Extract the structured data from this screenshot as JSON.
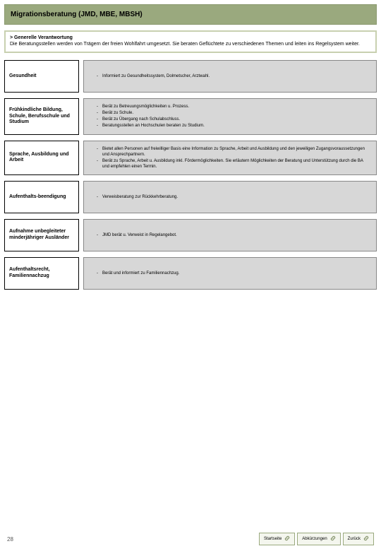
{
  "colors": {
    "header_bg": "#9aa97e",
    "intro_border": "#c8d0b0",
    "row_rhs_bg": "#d7d7d7",
    "btn_border": "#9aa97e",
    "btn_bg": "#f4f6ee"
  },
  "header": {
    "title": "Migrationsberatung (JMD, MBE, MBSH)"
  },
  "intro": {
    "chevron": ">",
    "title": "Generelle Verantwortung",
    "body": "Die Beratungsstellen werden von Trägern der freien Wohlfahrt umgesetzt. Sie beraten Geflüchtete zu verschiedenen Themen und leiten ins Regelsystem weiter."
  },
  "rows": [
    {
      "label": "Gesundheit",
      "bullets": [
        "Informiert zu Gesundheitssystem, Dolmetscher, Arztwahl."
      ]
    },
    {
      "label": "Frühkindliche Bildung, Schule, Berufsschule und Studium",
      "bullets": [
        "Berät zu Betreuungsmöglichkeiten u. Prozess.",
        "Berät zu Schule.",
        "Berät zu Übergang nach Schulabschluss.",
        "Beratungsstellen an Hochschulen beraten zu Studium."
      ]
    },
    {
      "label": "Sprache, Ausbildung und Arbeit",
      "bullets": [
        "Bietet allen Personen auf freiwilliger Basis eine Information zu Sprache, Arbeit und Ausbildung und den jeweiligen Zugangsvoraussetzungen und Ansprechpartnern.",
        "Berät zu Sprache, Arbeit u. Ausbildung inkl. Fördermöglichkeiten. Sie erläutern Möglichkeiten der Beratung und Unterstützung durch die BA und empfehlen einen Termin."
      ]
    },
    {
      "label": "Aufenthalts-beendigung",
      "bullets": [
        "Verweisberatung zur Rückkehrberatung."
      ]
    },
    {
      "label": "Aufnahme unbegleiteter minderjähriger Ausländer",
      "bullets": [
        "JMD berät u. Verweist in Regelangebot."
      ]
    },
    {
      "label": "Aufenthaltsrecht, Familiennachzug",
      "bullets": [
        "Berät und informiert zu Familiennachzug."
      ]
    }
  ],
  "footer": {
    "page_number": "28",
    "buttons": [
      {
        "label": "Startseite"
      },
      {
        "label": "Abkürzungen"
      },
      {
        "label": "Zurück"
      }
    ]
  }
}
